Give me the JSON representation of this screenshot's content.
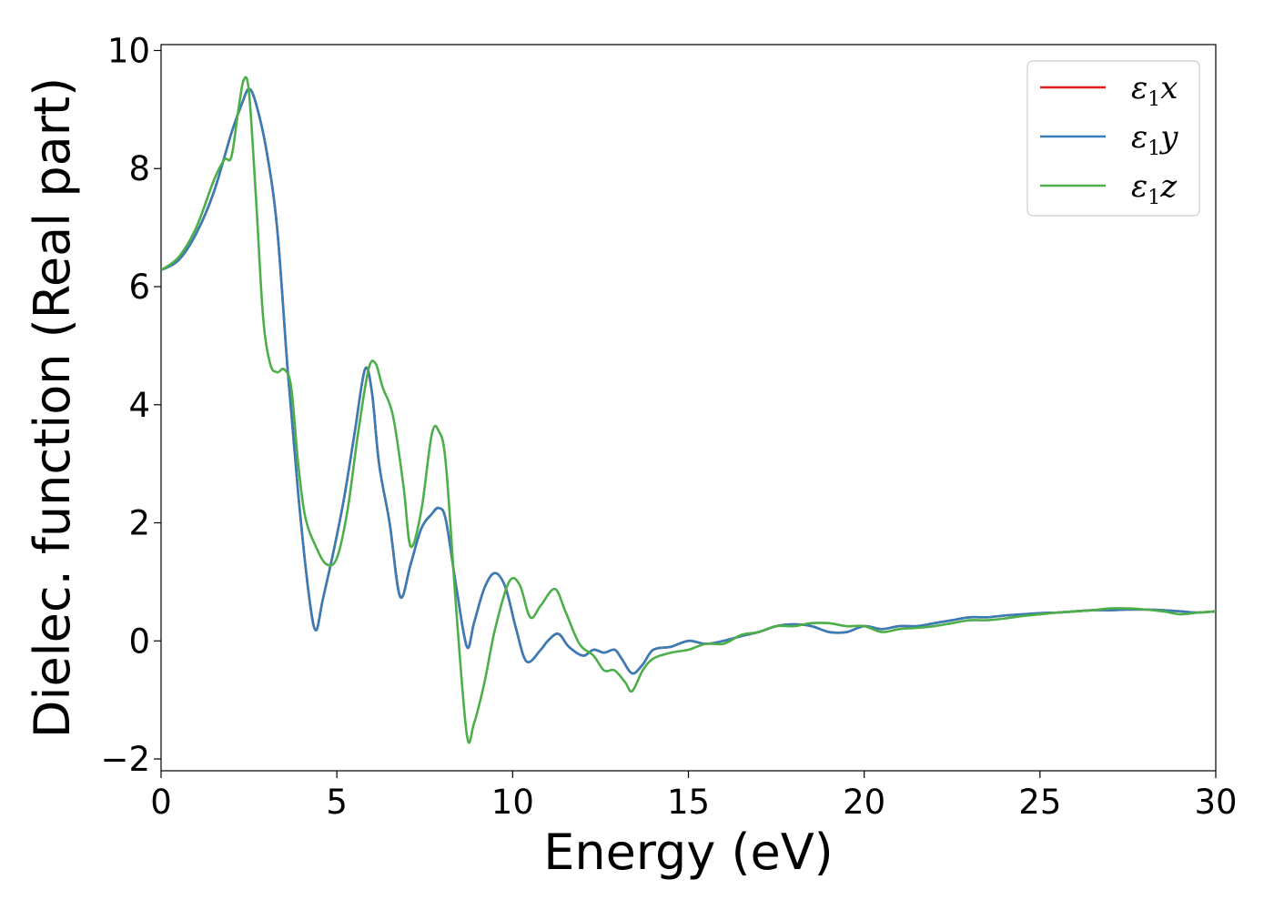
{
  "chart_data": {
    "type": "line",
    "xlabel": "Energy (eV)",
    "ylabel": "Dielec. function (Real part)",
    "xlim": [
      0,
      30
    ],
    "ylim": [
      -2.2,
      10.1
    ],
    "xticks": [
      0,
      5,
      10,
      15,
      20,
      25,
      30
    ],
    "yticks": [
      -2,
      0,
      2,
      4,
      6,
      8,
      10
    ],
    "grid": false,
    "legend_position": "top-right",
    "series": [
      {
        "name": "ε1x",
        "legend_main": "ε",
        "legend_sub": "1",
        "legend_var": "x",
        "color": "#e41a1c",
        "x": [
          0,
          0.5,
          1,
          1.5,
          2,
          2.3,
          2.5,
          2.7,
          3,
          3.3,
          3.6,
          3.9,
          4.2,
          4.4,
          4.6,
          4.9,
          5.2,
          5.5,
          5.8,
          6.0,
          6.2,
          6.5,
          6.8,
          7.1,
          7.4,
          7.7,
          7.9,
          8.1,
          8.4,
          8.7,
          8.9,
          9.2,
          9.5,
          9.8,
          10.1,
          10.4,
          10.8,
          11.0,
          11.3,
          11.6,
          12.0,
          12.3,
          12.6,
          12.9,
          13.1,
          13.4,
          13.7,
          14.0,
          14.5,
          15,
          15.5,
          16,
          16.5,
          17,
          17.5,
          18,
          18.5,
          19,
          19.5,
          20,
          20.5,
          21,
          21.5,
          22,
          22.5,
          23,
          23.5,
          24,
          24.5,
          25,
          25.5,
          26,
          26.5,
          27,
          27.5,
          28,
          28.5,
          29,
          29.5,
          30
        ],
        "y": [
          6.28,
          6.45,
          6.9,
          7.6,
          8.6,
          9.1,
          9.35,
          9.1,
          8.3,
          7.0,
          4.6,
          2.5,
          0.8,
          0.18,
          0.7,
          1.5,
          2.4,
          3.5,
          4.6,
          4.2,
          3.0,
          2.0,
          0.75,
          1.3,
          1.9,
          2.15,
          2.25,
          2.05,
          0.9,
          -0.1,
          0.3,
          0.9,
          1.15,
          0.9,
          0.2,
          -0.35,
          -0.15,
          0.0,
          0.12,
          -0.1,
          -0.25,
          -0.15,
          -0.2,
          -0.15,
          -0.3,
          -0.55,
          -0.4,
          -0.15,
          -0.1,
          0.0,
          -0.05,
          0.0,
          0.08,
          0.15,
          0.25,
          0.28,
          0.25,
          0.15,
          0.15,
          0.25,
          0.2,
          0.25,
          0.25,
          0.3,
          0.35,
          0.4,
          0.4,
          0.43,
          0.45,
          0.47,
          0.48,
          0.5,
          0.52,
          0.52,
          0.53,
          0.53,
          0.52,
          0.5,
          0.48,
          0.5
        ]
      },
      {
        "name": "ε1y",
        "legend_main": "ε",
        "legend_sub": "1",
        "legend_var": "y",
        "color": "#377eb8",
        "x": [
          0,
          0.5,
          1,
          1.5,
          2,
          2.3,
          2.5,
          2.7,
          3,
          3.3,
          3.6,
          3.9,
          4.2,
          4.4,
          4.6,
          4.9,
          5.2,
          5.5,
          5.8,
          6.0,
          6.2,
          6.5,
          6.8,
          7.1,
          7.4,
          7.7,
          7.9,
          8.1,
          8.4,
          8.7,
          8.9,
          9.2,
          9.5,
          9.8,
          10.1,
          10.4,
          10.8,
          11.0,
          11.3,
          11.6,
          12.0,
          12.3,
          12.6,
          12.9,
          13.1,
          13.4,
          13.7,
          14.0,
          14.5,
          15,
          15.5,
          16,
          16.5,
          17,
          17.5,
          18,
          18.5,
          19,
          19.5,
          20,
          20.5,
          21,
          21.5,
          22,
          22.5,
          23,
          23.5,
          24,
          24.5,
          25,
          25.5,
          26,
          26.5,
          27,
          27.5,
          28,
          28.5,
          29,
          29.5,
          30
        ],
        "y": [
          6.28,
          6.45,
          6.9,
          7.6,
          8.6,
          9.1,
          9.35,
          9.1,
          8.3,
          7.0,
          4.6,
          2.5,
          0.8,
          0.18,
          0.7,
          1.5,
          2.4,
          3.5,
          4.6,
          4.2,
          3.0,
          2.0,
          0.75,
          1.3,
          1.9,
          2.15,
          2.25,
          2.05,
          0.9,
          -0.1,
          0.3,
          0.9,
          1.15,
          0.9,
          0.2,
          -0.35,
          -0.15,
          0.0,
          0.12,
          -0.1,
          -0.25,
          -0.15,
          -0.2,
          -0.15,
          -0.3,
          -0.55,
          -0.4,
          -0.15,
          -0.1,
          0.0,
          -0.05,
          0.0,
          0.08,
          0.15,
          0.25,
          0.28,
          0.25,
          0.15,
          0.15,
          0.25,
          0.2,
          0.25,
          0.25,
          0.3,
          0.35,
          0.4,
          0.4,
          0.43,
          0.45,
          0.47,
          0.48,
          0.5,
          0.52,
          0.52,
          0.53,
          0.53,
          0.52,
          0.5,
          0.48,
          0.5
        ]
      },
      {
        "name": "ε1z",
        "legend_main": "ε",
        "legend_sub": "1",
        "legend_var": "z",
        "color": "#4daf4a",
        "x": [
          0,
          0.5,
          1,
          1.5,
          1.8,
          2.0,
          2.2,
          2.35,
          2.5,
          2.7,
          2.9,
          3.1,
          3.3,
          3.5,
          3.7,
          3.9,
          4.1,
          4.4,
          4.7,
          5.0,
          5.3,
          5.6,
          5.9,
          6.1,
          6.3,
          6.6,
          6.9,
          7.1,
          7.4,
          7.7,
          7.9,
          8.1,
          8.4,
          8.7,
          8.9,
          9.2,
          9.5,
          9.9,
          10.2,
          10.5,
          10.8,
          11.2,
          11.5,
          11.9,
          12.3,
          12.6,
          12.9,
          13.2,
          13.4,
          13.7,
          14.0,
          14.5,
          15,
          15.5,
          16,
          16.5,
          17,
          17.5,
          18,
          18.5,
          19,
          19.5,
          20,
          20.5,
          21,
          21.5,
          22,
          22.5,
          23,
          23.5,
          24,
          24.5,
          25,
          25.5,
          26,
          26.5,
          27,
          27.5,
          28,
          28.5,
          29,
          29.5,
          30
        ],
        "y": [
          6.28,
          6.5,
          7.0,
          7.8,
          8.15,
          8.2,
          9.0,
          9.5,
          9.3,
          7.5,
          5.5,
          4.7,
          4.55,
          4.6,
          4.3,
          3.0,
          2.1,
          1.6,
          1.3,
          1.4,
          2.2,
          3.5,
          4.6,
          4.7,
          4.3,
          3.8,
          2.6,
          1.6,
          2.2,
          3.5,
          3.55,
          3.0,
          0.5,
          -1.6,
          -1.4,
          -0.7,
          0.2,
          1.0,
          0.95,
          0.4,
          0.6,
          0.88,
          0.5,
          -0.05,
          -0.25,
          -0.5,
          -0.5,
          -0.7,
          -0.85,
          -0.5,
          -0.3,
          -0.2,
          -0.15,
          -0.05,
          -0.05,
          0.1,
          0.15,
          0.25,
          0.25,
          0.3,
          0.3,
          0.25,
          0.25,
          0.15,
          0.2,
          0.22,
          0.25,
          0.3,
          0.35,
          0.35,
          0.38,
          0.42,
          0.45,
          0.48,
          0.5,
          0.52,
          0.55,
          0.55,
          0.53,
          0.5,
          0.45,
          0.48,
          0.5
        ]
      }
    ]
  }
}
